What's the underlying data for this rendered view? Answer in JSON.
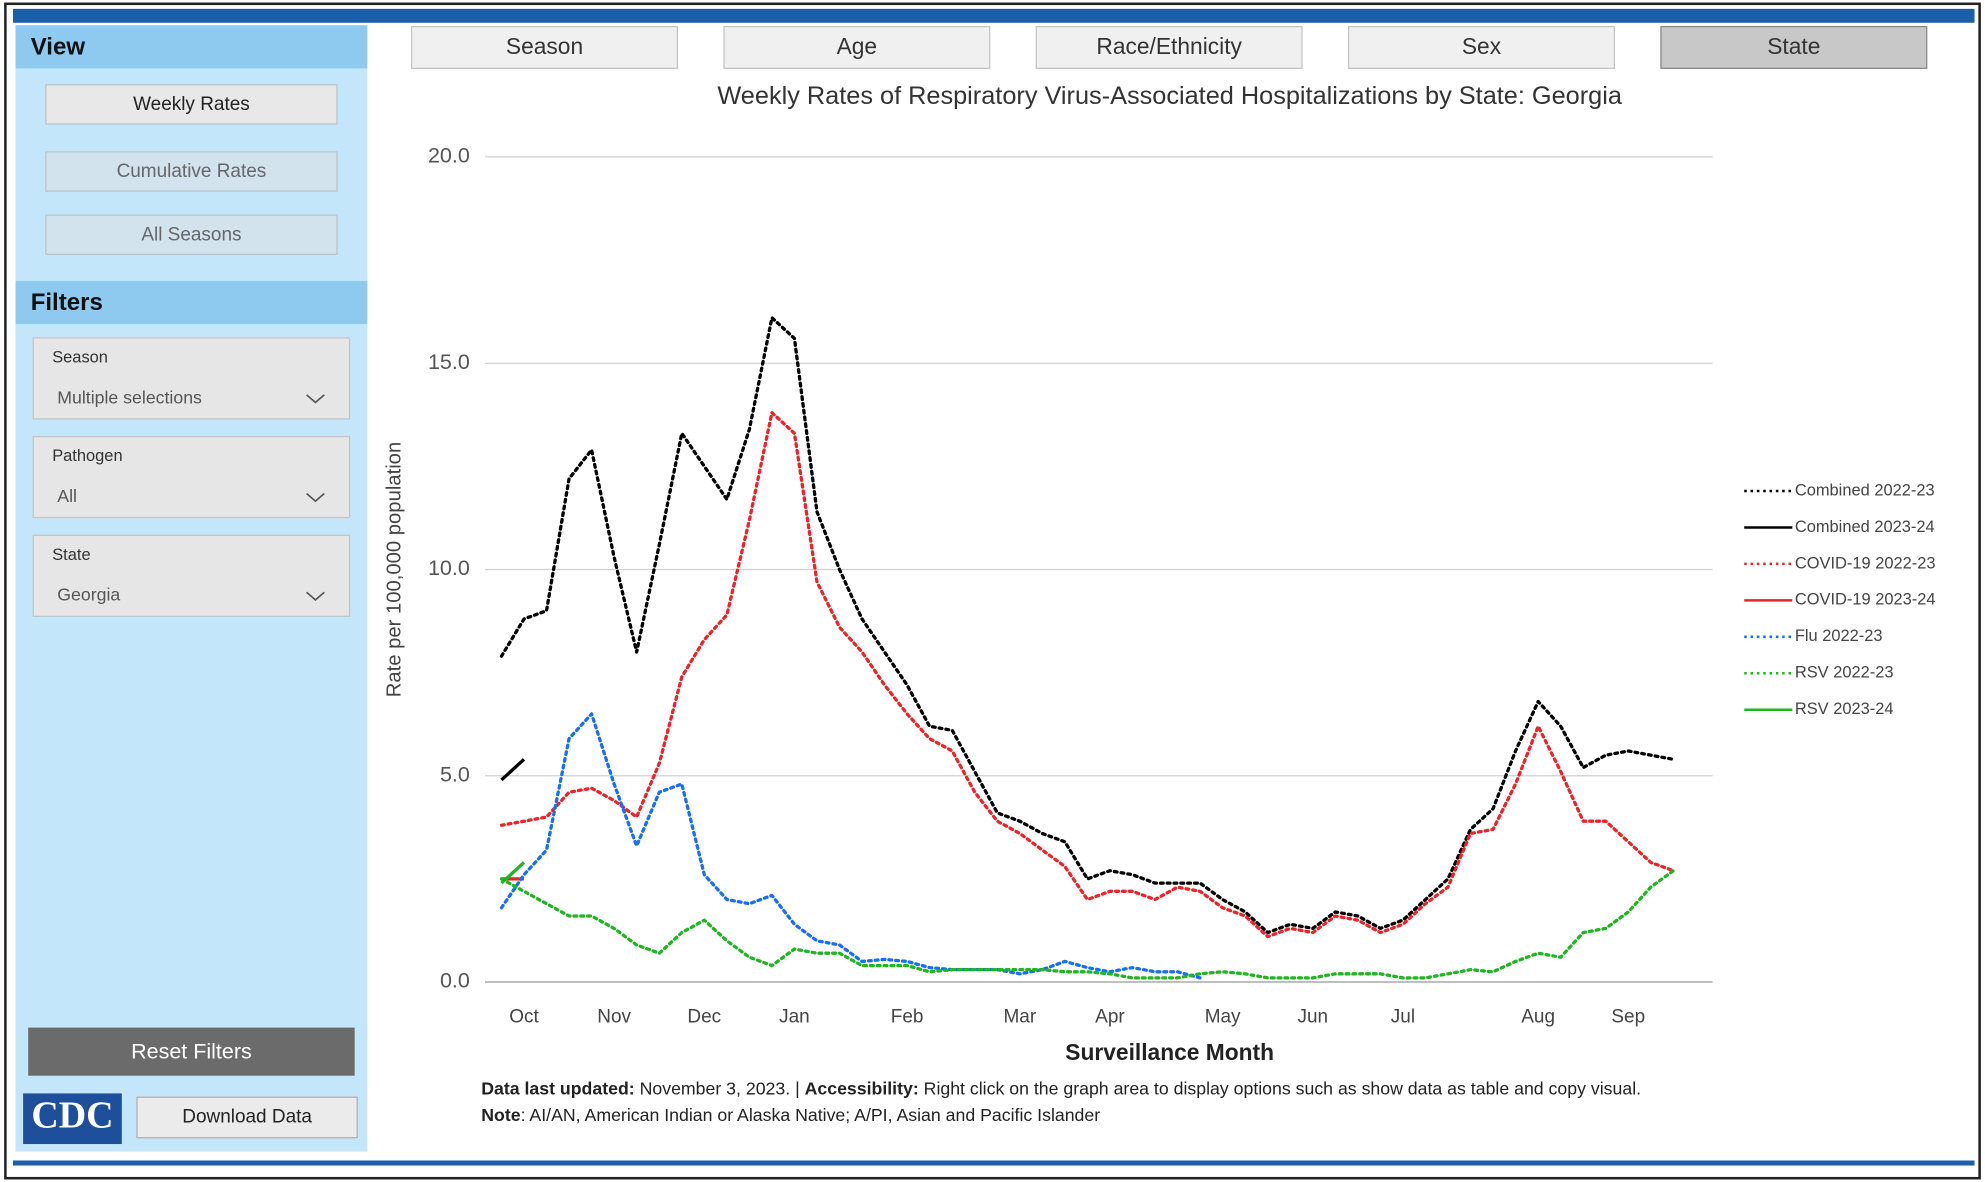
{
  "view": {
    "title": "View",
    "buttons": [
      "Weekly Rates",
      "Cumulative Rates",
      "All Seasons"
    ]
  },
  "filters": {
    "title": "Filters",
    "items": [
      {
        "label": "Season",
        "value": "Multiple selections"
      },
      {
        "label": "Pathogen",
        "value": "All"
      },
      {
        "label": "State",
        "value": "Georgia"
      }
    ]
  },
  "reset": "Reset Filters",
  "logo": "CDC",
  "download": "Download Data",
  "tabs": [
    "Season",
    "Age",
    "Race/Ethnicity",
    "Sex",
    "State"
  ],
  "footer": {
    "updated_label": "Data last updated:",
    "updated_text": " November 3, 2023. | ",
    "access_label": "Accessibility:",
    "access_text": " Right click on the graph area to display options such as show data as table and copy visual.",
    "note_label": "Note",
    "note_text": ": AI/AN, American Indian or Alaska Native; A/PI, Asian and Pacific Islander"
  },
  "chart_data": {
    "type": "line",
    "title": "Weekly Rates of Respiratory Virus-Associated Hospitalizations by State: Georgia",
    "xlabel": "Surveillance Month",
    "ylabel": "Rate per 100,000 population",
    "categories": [
      null,
      "Oct",
      null,
      null,
      null,
      "Nov",
      null,
      null,
      null,
      "Dec",
      null,
      null,
      null,
      "Jan",
      null,
      null,
      null,
      null,
      "Feb",
      null,
      null,
      null,
      null,
      "Mar",
      null,
      null,
      null,
      "Apr",
      null,
      null,
      null,
      null,
      "May",
      null,
      null,
      null,
      "Jun",
      null,
      null,
      null,
      "Jul",
      null,
      null,
      null,
      null,
      null,
      "Aug",
      null,
      null,
      null,
      "Sep",
      null,
      null
    ],
    "ylim": [
      0,
      20
    ],
    "yticks": [
      {
        "value": 0,
        "label": "0.0"
      },
      {
        "value": 5,
        "label": "5.0"
      },
      {
        "value": 10,
        "label": "10.0"
      },
      {
        "value": 15,
        "label": "15.0"
      },
      {
        "value": 20,
        "label": "20.0"
      }
    ],
    "grid": true,
    "legend": "right",
    "series": [
      {
        "name": "Combined 2022-23",
        "color": "#000000",
        "style": "dotted",
        "values": [
          7.9,
          8.8,
          9.0,
          12.2,
          12.9,
          10.3,
          8.0,
          10.6,
          13.3,
          12.5,
          11.7,
          13.4,
          16.1,
          15.6,
          11.4,
          10.0,
          8.8,
          8.0,
          7.2,
          6.2,
          6.1,
          5.1,
          4.1,
          3.9,
          3.6,
          3.4,
          2.5,
          2.7,
          2.6,
          2.4,
          2.4,
          2.4,
          2.0,
          1.7,
          1.2,
          1.4,
          1.3,
          1.7,
          1.6,
          1.3,
          1.5,
          2.0,
          2.5,
          3.7,
          4.2,
          5.6,
          6.8,
          6.2,
          5.2,
          5.5,
          5.6,
          5.5,
          5.4
        ]
      },
      {
        "name": "Combined 2023-24",
        "color": "#000000",
        "style": "solid",
        "values": [
          4.9,
          5.4,
          null,
          null,
          null,
          null,
          null,
          null,
          null,
          null,
          null,
          null,
          null,
          null,
          null,
          null,
          null,
          null,
          null,
          null,
          null,
          null,
          null,
          null,
          null,
          null,
          null,
          null,
          null,
          null,
          null,
          null,
          null,
          null,
          null,
          null,
          null,
          null,
          null,
          null,
          null,
          null,
          null,
          null,
          null,
          null,
          null,
          null,
          null,
          null,
          null,
          null,
          null
        ]
      },
      {
        "name": "COVID-19 2022-23",
        "color": "#e8252a",
        "style": "dotted",
        "values": [
          3.8,
          3.9,
          4.0,
          4.6,
          4.7,
          4.4,
          4.0,
          5.3,
          7.4,
          8.3,
          8.9,
          11.2,
          13.8,
          13.3,
          9.7,
          8.6,
          8.0,
          7.2,
          6.5,
          5.9,
          5.6,
          4.6,
          3.9,
          3.6,
          3.2,
          2.8,
          2.0,
          2.2,
          2.2,
          2.0,
          2.3,
          2.2,
          1.8,
          1.6,
          1.1,
          1.3,
          1.2,
          1.6,
          1.5,
          1.2,
          1.4,
          1.9,
          2.3,
          3.6,
          3.7,
          4.8,
          6.2,
          5.1,
          3.9,
          3.9,
          3.4,
          2.9,
          2.7
        ]
      },
      {
        "name": "COVID-19 2023-24",
        "color": "#e8252a",
        "style": "solid",
        "values": [
          2.5,
          2.5,
          null,
          null,
          null,
          null,
          null,
          null,
          null,
          null,
          null,
          null,
          null,
          null,
          null,
          null,
          null,
          null,
          null,
          null,
          null,
          null,
          null,
          null,
          null,
          null,
          null,
          null,
          null,
          null,
          null,
          null,
          null,
          null,
          null,
          null,
          null,
          null,
          null,
          null,
          null,
          null,
          null,
          null,
          null,
          null,
          null,
          null,
          null,
          null,
          null,
          null,
          null
        ]
      },
      {
        "name": "Flu 2022-23",
        "color": "#1a6ff0",
        "style": "dotted",
        "values": [
          1.8,
          2.6,
          3.2,
          5.9,
          6.5,
          4.8,
          3.3,
          4.6,
          4.8,
          2.6,
          2.0,
          1.9,
          2.1,
          1.4,
          1.0,
          0.9,
          0.5,
          0.55,
          0.5,
          0.35,
          0.3,
          0.3,
          0.3,
          0.2,
          0.3,
          0.5,
          0.35,
          0.25,
          0.35,
          0.25,
          0.25,
          0.1,
          null,
          null,
          null,
          null,
          null,
          null,
          null,
          null,
          null,
          null,
          null,
          null,
          null,
          null,
          null,
          null,
          null,
          null,
          null,
          null,
          null
        ]
      },
      {
        "name": "RSV 2022-23",
        "color": "#22b422",
        "style": "dotted",
        "values": [
          2.5,
          2.2,
          1.9,
          1.6,
          1.6,
          1.3,
          0.9,
          0.7,
          1.2,
          1.5,
          1.0,
          0.6,
          0.4,
          0.8,
          0.7,
          0.7,
          0.4,
          0.4,
          0.4,
          0.25,
          0.3,
          0.3,
          0.3,
          0.3,
          0.3,
          0.25,
          0.25,
          0.2,
          0.1,
          0.1,
          0.1,
          0.2,
          0.25,
          0.2,
          0.1,
          0.1,
          0.1,
          0.2,
          0.2,
          0.2,
          0.1,
          0.1,
          0.2,
          0.3,
          0.25,
          0.5,
          0.7,
          0.6,
          1.2,
          1.3,
          1.7,
          2.3,
          2.7
        ]
      },
      {
        "name": "RSV 2023-24",
        "color": "#22b422",
        "style": "solid",
        "values": [
          2.4,
          2.9,
          null,
          null,
          null,
          null,
          null,
          null,
          null,
          null,
          null,
          null,
          null,
          null,
          null,
          null,
          null,
          null,
          null,
          null,
          null,
          null,
          null,
          null,
          null,
          null,
          null,
          null,
          null,
          null,
          null,
          null,
          null,
          null,
          null,
          null,
          null,
          null,
          null,
          null,
          null,
          null,
          null,
          null,
          null,
          null,
          null,
          null,
          null,
          null,
          null,
          null,
          null
        ]
      }
    ]
  }
}
